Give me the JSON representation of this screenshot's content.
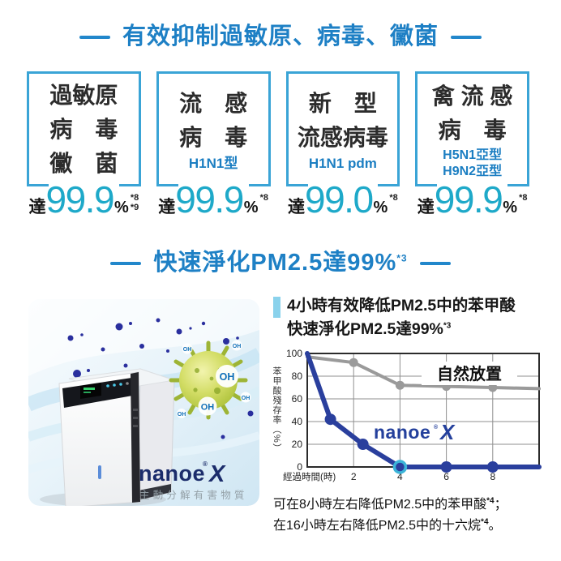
{
  "headings": {
    "h1": "有效抑制過敏原、病毒、黴菌",
    "h2_main": "快速淨化PM2.5達99%",
    "h2_sup": "*3"
  },
  "boxes": [
    {
      "lines": [
        "過敏原",
        "病　毒",
        "黴　菌"
      ],
      "sub_lines": [],
      "prefix": "達",
      "value": "99.9",
      "unit": "%",
      "footnotes": [
        "*8",
        "*9"
      ]
    },
    {
      "lines": [
        "流　感",
        "病　毒"
      ],
      "sub_lines": [
        "H1N1型"
      ],
      "prefix": "達",
      "value": "99.9",
      "unit": "%",
      "footnotes": [
        "*8"
      ]
    },
    {
      "lines": [
        "新　型",
        "流感病毒"
      ],
      "sub_lines": [
        "H1N1 pdm"
      ],
      "prefix": "達",
      "value": "99.0",
      "unit": "%",
      "footnotes": [
        "*8"
      ]
    },
    {
      "lines": [
        "禽 流 感",
        "病　毒"
      ],
      "sub_lines": [
        "H5N1亞型",
        "H9N2亞型"
      ],
      "prefix": "達",
      "value": "99.9",
      "unit": "%",
      "footnotes": [
        "*8"
      ]
    }
  ],
  "chart_header": {
    "line1": "4小時有效降低PM2.5中的苯甲酸",
    "line2_main": "快速淨化PM2.5達99%",
    "line2_sup": "*3"
  },
  "chart_data": {
    "type": "line",
    "title": "4小時有效降低PM2.5中的苯甲酸 快速淨化PM2.5達99%*3",
    "xlabel": "經過時間(時)",
    "ylabel": "苯甲酸殘存率（%）",
    "xlim": [
      0,
      10
    ],
    "ylim": [
      0,
      100
    ],
    "x_ticks": [
      2,
      4,
      6,
      8
    ],
    "y_ticks": [
      0,
      20,
      40,
      60,
      80,
      100
    ],
    "grid": true,
    "legend_position": "top-right-inside",
    "series": [
      {
        "name": "自然放置",
        "color": "#9a9a9a",
        "x": [
          0,
          2,
          4,
          6,
          8,
          10
        ],
        "y": [
          97,
          92,
          72,
          71,
          70,
          69
        ],
        "marker_x": [
          2,
          4,
          6,
          8
        ]
      },
      {
        "name": "nanoe X",
        "color": "#2a3f9d",
        "x": [
          0,
          1,
          2.4,
          4,
          6,
          8,
          10
        ],
        "y": [
          100,
          42,
          20,
          0,
          0,
          0,
          0
        ],
        "marker_x": [
          1,
          2.4,
          4,
          6,
          8
        ],
        "highlight_x": 4,
        "highlight_color": "#3cb4d8"
      }
    ]
  },
  "chart_logo": {
    "nanoe": "nanoe",
    "mark": "®",
    "x": "X"
  },
  "product": {
    "logo_nanoe": "nanoe",
    "logo_mark": "®",
    "logo_x": "X",
    "tagline": "主動分解有害物質",
    "oh": "OH"
  },
  "notes": [
    {
      "text": "可在8小時左右降低PM2.5中的苯甲酸",
      "sup": "*4",
      "tail": "；"
    },
    {
      "text": "在16小時左右降低PM2.5中的十六烷",
      "sup": "*4",
      "tail": "。"
    }
  ],
  "colors": {
    "heading_blue": "#1e80c5",
    "box_border_blue": "#3aa4d6",
    "value_teal": "#1ea9c9",
    "subtype_blue": "#1b7ec2",
    "chart_blue": "#2a3f9d",
    "chart_gray": "#9a9a9a",
    "highlight_cyan": "#3cb4d8",
    "header_bar_lightblue": "#8ad2ec",
    "logo_navy": "#1b2c6b"
  }
}
